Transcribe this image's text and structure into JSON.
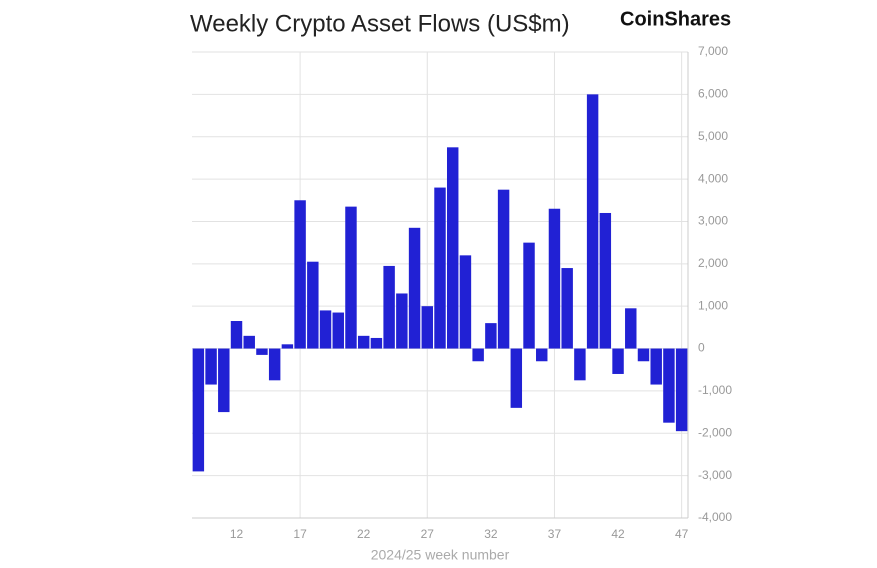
{
  "chart_data": {
    "type": "bar",
    "title": "Weekly Crypto Asset Flows (US$m)",
    "brand": "CoinShares",
    "x_label": "2024/25 week number",
    "x": [
      9,
      10,
      11,
      12,
      13,
      14,
      15,
      16,
      17,
      18,
      19,
      20,
      21,
      22,
      23,
      24,
      25,
      26,
      27,
      28,
      29,
      30,
      31,
      32,
      33,
      34,
      35,
      36,
      37,
      38,
      39,
      40,
      41,
      42,
      43,
      44,
      45,
      46,
      47
    ],
    "values": [
      -2900,
      -850,
      -1500,
      650,
      300,
      -150,
      -750,
      100,
      3500,
      2050,
      900,
      850,
      3350,
      300,
      250,
      1950,
      1300,
      2850,
      1000,
      3800,
      4750,
      2200,
      -300,
      600,
      3750,
      -1400,
      2500,
      -300,
      3300,
      1900,
      -750,
      6000,
      3200,
      -600,
      950,
      -300,
      -850,
      -1750,
      -1950
    ],
    "color": "#2121d4",
    "xlim": [
      8.5,
      47.5
    ],
    "xticks": [
      12,
      17,
      22,
      27,
      32,
      37,
      42,
      47
    ],
    "ylim": [
      -4000,
      7000
    ],
    "yticks": [
      {
        "value": -4000,
        "label": "-4,000"
      },
      {
        "value": -3000,
        "label": "-3,000"
      },
      {
        "value": -2000,
        "label": "-2,000"
      },
      {
        "value": -1000,
        "label": "-1,000"
      },
      0,
      {
        "value": 1000,
        "label": "1,000"
      },
      {
        "value": 2000,
        "label": "2,000"
      },
      {
        "value": 3000,
        "label": "3,000"
      },
      {
        "value": 4000,
        "label": "4,000"
      },
      {
        "value": 5000,
        "label": "5,000"
      },
      {
        "value": 6000,
        "label": "6,000"
      },
      {
        "value": 7000,
        "label": "7,000"
      }
    ],
    "grid": true
  }
}
